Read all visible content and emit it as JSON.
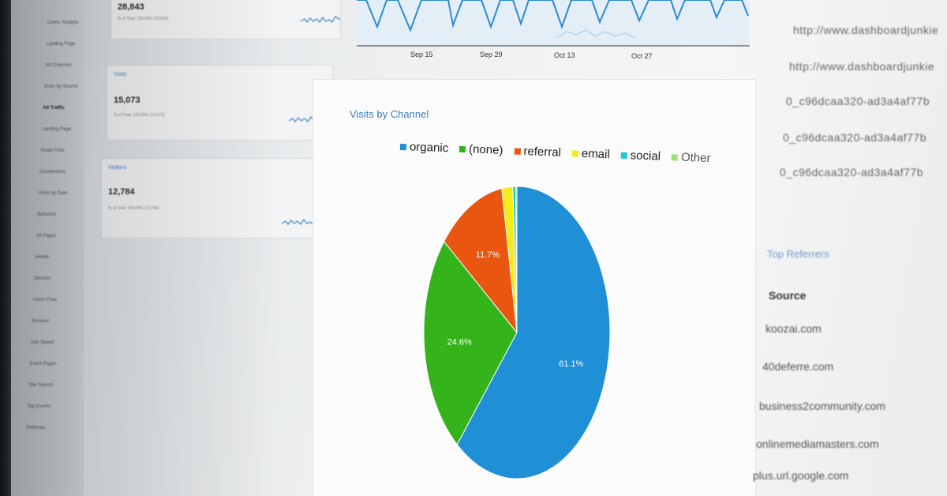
{
  "nav": {
    "items": [
      "Users: Analytic",
      "Landing Page",
      "All Channels",
      "Visits by Source",
      "All Traffic",
      "Landing Page",
      "Goals Flow",
      "Conversions",
      "Visits by Date",
      "Behavior",
      "All Pages",
      "Mobile",
      "Devices",
      "Users Flow",
      "Browser",
      "Site Speed",
      "Event Pages",
      "Site Search",
      "Top Events",
      "Referrals"
    ],
    "active_index": 4
  },
  "cards": [
    {
      "title": "",
      "value": "28,843",
      "sub": "% of Total: 100.00% (28,843)"
    },
    {
      "title": "Visits",
      "value": "15,073",
      "sub": "% of Total: 100.00% (15,073)"
    },
    {
      "title": "Visitors",
      "value": "12,784",
      "sub": "% of Total: 100.00% (12,784)"
    }
  ],
  "line_chart": {
    "ticks": [
      "Sep 15",
      "Sep 29",
      "Oct 13",
      "Oct 27"
    ]
  },
  "pie": {
    "title": "Visits by Channel",
    "colors": {
      "organic": "#1f8fd6",
      "none": "#34b41a",
      "referral": "#e8560f",
      "email": "#f5ec1c",
      "social": "#20c7d4",
      "other": "#9be37a"
    }
  },
  "chart_data": {
    "type": "pie",
    "title": "Visits by Channel",
    "categories": [
      "organic",
      "(none)",
      "referral",
      "email",
      "social",
      "Other"
    ],
    "values": [
      61.1,
      24.6,
      11.7,
      1.9,
      0.5,
      0.2
    ],
    "labels": [
      "61.1%",
      "24.6%",
      "11.7%",
      "",
      "",
      ""
    ],
    "colors": [
      "#1f8fd6",
      "#34b41a",
      "#e8560f",
      "#f5ec1c",
      "#20c7d4",
      "#9be37a"
    ],
    "legend": "top"
  },
  "right": {
    "urls": [
      "http://www.dashboardjunkie",
      "http://www.dashboardjunkie",
      "0_c96dcaa320-ad3a4af77b",
      "0_c96dcaa320-ad3a4af77b",
      "0_c96dcaa320-ad3a4af77b"
    ],
    "referrals_title": "Top Referrers",
    "source_header": "Source",
    "sources": [
      "koozai.com",
      "40deferre.com",
      "business2community.com",
      "onlinemediamasters.com",
      "plus.url.google.com"
    ]
  }
}
